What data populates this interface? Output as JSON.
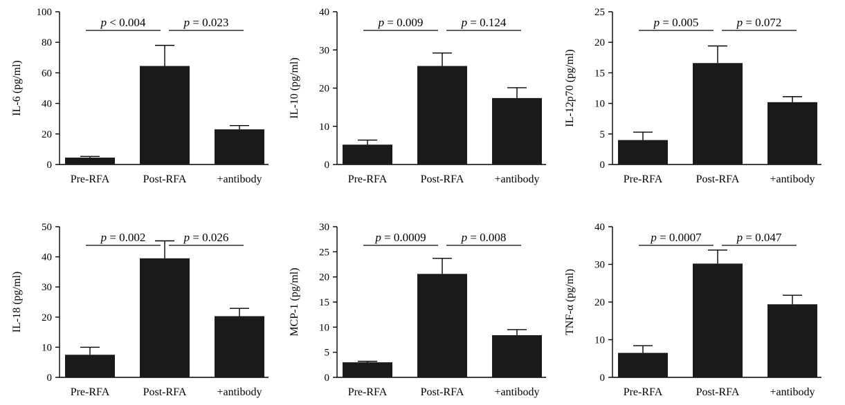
{
  "chart_data": [
    {
      "type": "bar",
      "ylabel": "IL-6 (pg/ml)",
      "categories": [
        "Pre-RFA",
        "Post-RFA",
        "+antibody"
      ],
      "values": [
        4.5,
        64.5,
        23
      ],
      "errors": [
        0.8,
        13.5,
        2.5
      ],
      "ylim": [
        0,
        100
      ],
      "yticks": [
        0,
        20,
        40,
        60,
        80,
        100
      ],
      "comparisons": [
        {
          "between": [
            0,
            1
          ],
          "label": "p < 0.004",
          "italic": "p",
          "rest": " < 0.004"
        },
        {
          "between": [
            1,
            2
          ],
          "label": "p = 0.023",
          "italic": "p",
          "rest": " = 0.023"
        }
      ]
    },
    {
      "type": "bar",
      "ylabel": "IL-10 (pg/ml)",
      "categories": [
        "Pre-RFA",
        "Post-RFA",
        "+antibody"
      ],
      "values": [
        5.2,
        25.8,
        17.4
      ],
      "errors": [
        1.2,
        3.4,
        2.7
      ],
      "ylim": [
        0,
        40
      ],
      "yticks": [
        0,
        10,
        20,
        30,
        40
      ],
      "comparisons": [
        {
          "between": [
            0,
            1
          ],
          "label": "p = 0.009",
          "italic": "p",
          "rest": " = 0.009"
        },
        {
          "between": [
            1,
            2
          ],
          "label": "p = 0.124",
          "italic": "p",
          "rest": " = 0.124"
        }
      ]
    },
    {
      "type": "bar",
      "ylabel": "IL-12p70 (pg/ml)",
      "categories": [
        "Pre-RFA",
        "Post-RFA",
        "+antibody"
      ],
      "values": [
        4.0,
        16.6,
        10.2
      ],
      "errors": [
        1.3,
        2.8,
        0.9
      ],
      "ylim": [
        0,
        25
      ],
      "yticks": [
        0,
        5,
        10,
        15,
        20,
        25
      ],
      "comparisons": [
        {
          "between": [
            0,
            1
          ],
          "label": "p = 0.005",
          "italic": "p",
          "rest": " = 0.005"
        },
        {
          "between": [
            1,
            2
          ],
          "label": "p = 0.072",
          "italic": "p",
          "rest": " = 0.072"
        }
      ]
    },
    {
      "type": "bar",
      "ylabel": "IL-18 (pg/ml)",
      "categories": [
        "Pre-RFA",
        "Post-RFA",
        "+antibody"
      ],
      "values": [
        7.5,
        39.5,
        20.3
      ],
      "errors": [
        2.5,
        5.8,
        2.6
      ],
      "ylim": [
        0,
        50
      ],
      "yticks": [
        0,
        10,
        20,
        30,
        40,
        50
      ],
      "comparisons": [
        {
          "between": [
            0,
            1
          ],
          "label": "p = 0.002",
          "italic": "p",
          "rest": " = 0.002"
        },
        {
          "between": [
            1,
            2
          ],
          "label": "p = 0.026",
          "italic": "p",
          "rest": " = 0.026"
        }
      ]
    },
    {
      "type": "bar",
      "ylabel": "MCP-1 (pg/ml)",
      "categories": [
        "Pre-RFA",
        "Post-RFA",
        "+antibody"
      ],
      "values": [
        3.0,
        20.6,
        8.4
      ],
      "errors": [
        0.2,
        3.1,
        1.1
      ],
      "ylim": [
        0,
        30
      ],
      "yticks": [
        0,
        5,
        10,
        15,
        20,
        25,
        30
      ],
      "comparisons": [
        {
          "between": [
            0,
            1
          ],
          "label": "p = 0.0009",
          "italic": "p",
          "rest": " = 0.0009"
        },
        {
          "between": [
            1,
            2
          ],
          "label": "p = 0.008",
          "italic": "p",
          "rest": " = 0.008"
        }
      ]
    },
    {
      "type": "bar",
      "ylabel": "TNF-α (pg/ml)",
      "categories": [
        "Pre-RFA",
        "Post-RFA",
        "+antibody"
      ],
      "values": [
        6.5,
        30.2,
        19.4
      ],
      "errors": [
        1.9,
        3.6,
        2.4
      ],
      "ylim": [
        0,
        40
      ],
      "yticks": [
        0,
        10,
        20,
        30,
        40
      ],
      "comparisons": [
        {
          "between": [
            0,
            1
          ],
          "label": "p = 0.0007",
          "italic": "p",
          "rest": " = 0.0007"
        },
        {
          "between": [
            1,
            2
          ],
          "label": "p = 0.047",
          "italic": "p",
          "rest": " = 0.047"
        }
      ]
    }
  ],
  "colors": {
    "bar": "#1a1a1a",
    "axis": "#000000",
    "background": "#ffffff"
  }
}
